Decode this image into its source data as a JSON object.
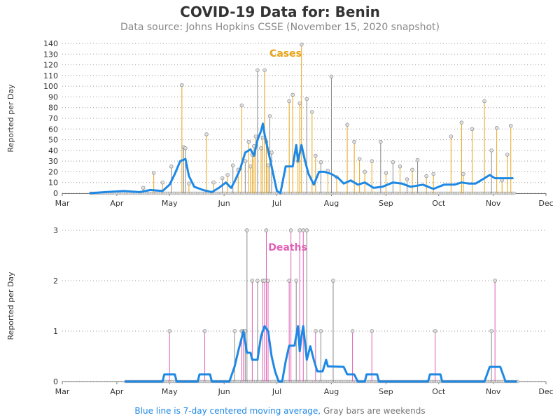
{
  "title": "COVID-19 Data for: Benin",
  "subtitle": "Data source: Johns Hopkins CSSE (November 15, 2020 snapshot)",
  "footer": {
    "blue_part": "Blue line is 7-day centered moving average,",
    "gray_part": "Gray bars are weekends"
  },
  "colors": {
    "cases": "#e8a317",
    "deaths": "#e05fb5",
    "weekend": "#888888",
    "average": "#1e88e5",
    "grid": "#999999"
  },
  "chart_data": [
    {
      "type": "bar",
      "panel": "cases",
      "title": "Cases",
      "ylabel": "Reported per Day",
      "xlim": [
        "2020-03-01",
        "2020-12-01"
      ],
      "ylim": [
        0,
        140
      ],
      "yticks": [
        0,
        10,
        20,
        30,
        40,
        50,
        60,
        70,
        80,
        90,
        100,
        110,
        120,
        130,
        140
      ],
      "xticks": [
        {
          "date": "2020-03-01",
          "label": "Mar"
        },
        {
          "date": "2020-04-01",
          "label": "Apr"
        },
        {
          "date": "2020-05-01",
          "label": "May"
        },
        {
          "date": "2020-06-01",
          "label": "Jun"
        },
        {
          "date": "2020-07-01",
          "label": "Jul"
        },
        {
          "date": "2020-08-01",
          "label": "Aug"
        },
        {
          "date": "2020-09-01",
          "label": "Sep"
        },
        {
          "date": "2020-10-01",
          "label": "Oct"
        },
        {
          "date": "2020-11-01",
          "label": "Nov"
        },
        {
          "date": "2020-12-01",
          "label": "Dec"
        }
      ],
      "points": [
        {
          "date": "2020-04-16",
          "value": 5
        },
        {
          "date": "2020-04-22",
          "value": 19
        },
        {
          "date": "2020-04-27",
          "value": 10
        },
        {
          "date": "2020-05-02",
          "value": 25
        },
        {
          "date": "2020-05-08",
          "value": 101
        },
        {
          "date": "2020-05-09",
          "value": 43
        },
        {
          "date": "2020-05-10",
          "value": 42
        },
        {
          "date": "2020-05-12",
          "value": 9
        },
        {
          "date": "2020-05-22",
          "value": 55
        },
        {
          "date": "2020-05-26",
          "value": 10
        },
        {
          "date": "2020-05-31",
          "value": 14
        },
        {
          "date": "2020-06-03",
          "value": 17
        },
        {
          "date": "2020-06-06",
          "value": 26
        },
        {
          "date": "2020-06-09",
          "value": 22
        },
        {
          "date": "2020-06-11",
          "value": 82
        },
        {
          "date": "2020-06-13",
          "value": 30
        },
        {
          "date": "2020-06-15",
          "value": 48
        },
        {
          "date": "2020-06-16",
          "value": 25
        },
        {
          "date": "2020-06-17",
          "value": 36
        },
        {
          "date": "2020-06-18",
          "value": 44
        },
        {
          "date": "2020-06-19",
          "value": 53
        },
        {
          "date": "2020-06-20",
          "value": 115
        },
        {
          "date": "2020-06-22",
          "value": 42
        },
        {
          "date": "2020-06-23",
          "value": 52
        },
        {
          "date": "2020-06-24",
          "value": 115
        },
        {
          "date": "2020-06-25",
          "value": 48
        },
        {
          "date": "2020-06-26",
          "value": 26
        },
        {
          "date": "2020-06-27",
          "value": 72
        },
        {
          "date": "2020-06-28",
          "value": 38
        },
        {
          "date": "2020-07-08",
          "value": 86
        },
        {
          "date": "2020-07-10",
          "value": 92
        },
        {
          "date": "2020-07-13",
          "value": 30
        },
        {
          "date": "2020-07-14",
          "value": 84
        },
        {
          "date": "2020-07-15",
          "value": 139
        },
        {
          "date": "2020-07-18",
          "value": 88
        },
        {
          "date": "2020-07-21",
          "value": 76
        },
        {
          "date": "2020-07-23",
          "value": 35
        },
        {
          "date": "2020-07-26",
          "value": 29
        },
        {
          "date": "2020-07-30",
          "value": 21
        },
        {
          "date": "2020-08-01",
          "value": 109
        },
        {
          "date": "2020-08-04",
          "value": 15
        },
        {
          "date": "2020-08-10",
          "value": 64
        },
        {
          "date": "2020-08-14",
          "value": 48
        },
        {
          "date": "2020-08-17",
          "value": 32
        },
        {
          "date": "2020-08-20",
          "value": 20
        },
        {
          "date": "2020-08-24",
          "value": 30
        },
        {
          "date": "2020-08-29",
          "value": 48
        },
        {
          "date": "2020-09-01",
          "value": 19
        },
        {
          "date": "2020-09-05",
          "value": 29
        },
        {
          "date": "2020-09-09",
          "value": 25
        },
        {
          "date": "2020-09-13",
          "value": 13
        },
        {
          "date": "2020-09-16",
          "value": 22
        },
        {
          "date": "2020-09-19",
          "value": 31
        },
        {
          "date": "2020-09-24",
          "value": 16
        },
        {
          "date": "2020-09-28",
          "value": 18
        },
        {
          "date": "2020-10-08",
          "value": 53
        },
        {
          "date": "2020-10-14",
          "value": 66
        },
        {
          "date": "2020-10-15",
          "value": 18
        },
        {
          "date": "2020-10-20",
          "value": 60
        },
        {
          "date": "2020-10-27",
          "value": 86
        },
        {
          "date": "2020-10-31",
          "value": 40
        },
        {
          "date": "2020-11-03",
          "value": 61
        },
        {
          "date": "2020-11-06",
          "value": 12
        },
        {
          "date": "2020-11-09",
          "value": 36
        },
        {
          "date": "2020-11-11",
          "value": 63
        }
      ],
      "moving_average": [
        [
          "2020-03-17",
          0
        ],
        [
          "2020-03-25",
          1
        ],
        [
          "2020-04-05",
          2
        ],
        [
          "2020-04-14",
          1
        ],
        [
          "2020-04-20",
          3
        ],
        [
          "2020-04-27",
          2
        ],
        [
          "2020-05-01",
          8
        ],
        [
          "2020-05-04",
          18
        ],
        [
          "2020-05-07",
          30
        ],
        [
          "2020-05-10",
          32
        ],
        [
          "2020-05-12",
          16
        ],
        [
          "2020-05-15",
          6
        ],
        [
          "2020-05-20",
          3
        ],
        [
          "2020-05-25",
          1
        ],
        [
          "2020-05-29",
          5
        ],
        [
          "2020-06-02",
          10
        ],
        [
          "2020-06-05",
          5
        ],
        [
          "2020-06-07",
          11
        ],
        [
          "2020-06-10",
          22
        ],
        [
          "2020-06-13",
          38
        ],
        [
          "2020-06-16",
          41
        ],
        [
          "2020-06-18",
          35
        ],
        [
          "2020-06-20",
          50
        ],
        [
          "2020-06-22",
          58
        ],
        [
          "2020-06-23",
          65
        ],
        [
          "2020-06-24",
          55
        ],
        [
          "2020-06-26",
          40
        ],
        [
          "2020-06-28",
          25
        ],
        [
          "2020-07-01",
          2
        ],
        [
          "2020-07-03",
          0
        ],
        [
          "2020-07-06",
          25
        ],
        [
          "2020-07-10",
          25
        ],
        [
          "2020-07-12",
          45
        ],
        [
          "2020-07-13",
          30
        ],
        [
          "2020-07-15",
          45
        ],
        [
          "2020-07-17",
          30
        ],
        [
          "2020-07-19",
          18
        ],
        [
          "2020-07-22",
          8
        ],
        [
          "2020-07-25",
          20
        ],
        [
          "2020-07-28",
          20
        ],
        [
          "2020-08-01",
          18
        ],
        [
          "2020-08-05",
          14
        ],
        [
          "2020-08-08",
          9
        ],
        [
          "2020-08-12",
          12
        ],
        [
          "2020-08-16",
          8
        ],
        [
          "2020-08-20",
          10
        ],
        [
          "2020-08-25",
          5
        ],
        [
          "2020-08-30",
          6
        ],
        [
          "2020-09-05",
          10
        ],
        [
          "2020-09-10",
          9
        ],
        [
          "2020-09-15",
          6
        ],
        [
          "2020-09-22",
          8
        ],
        [
          "2020-09-28",
          4
        ],
        [
          "2020-10-04",
          8
        ],
        [
          "2020-10-10",
          8
        ],
        [
          "2020-10-14",
          10
        ],
        [
          "2020-10-18",
          9
        ],
        [
          "2020-10-22",
          9
        ],
        [
          "2020-10-25",
          12
        ],
        [
          "2020-10-30",
          17
        ],
        [
          "2020-11-02",
          14
        ],
        [
          "2020-11-06",
          14
        ],
        [
          "2020-11-12",
          14
        ]
      ]
    },
    {
      "type": "bar",
      "panel": "deaths",
      "title": "Deaths",
      "ylabel": "Reported per Day",
      "xlim": [
        "2020-03-01",
        "2020-12-01"
      ],
      "ylim": [
        0,
        3
      ],
      "yticks": [
        0,
        1,
        2,
        3
      ],
      "xticks": [
        {
          "date": "2020-03-01",
          "label": "Mar"
        },
        {
          "date": "2020-04-01",
          "label": "Apr"
        },
        {
          "date": "2020-05-01",
          "label": "May"
        },
        {
          "date": "2020-06-01",
          "label": "Jun"
        },
        {
          "date": "2020-07-01",
          "label": "Jul"
        },
        {
          "date": "2020-08-01",
          "label": "Aug"
        },
        {
          "date": "2020-09-01",
          "label": "Sep"
        },
        {
          "date": "2020-10-01",
          "label": "Oct"
        },
        {
          "date": "2020-11-01",
          "label": "Nov"
        },
        {
          "date": "2020-12-01",
          "label": "Dec"
        }
      ],
      "points": [
        {
          "date": "2020-05-01",
          "value": 1
        },
        {
          "date": "2020-05-21",
          "value": 1
        },
        {
          "date": "2020-06-07",
          "value": 1
        },
        {
          "date": "2020-06-11",
          "value": 1
        },
        {
          "date": "2020-06-12",
          "value": 1
        },
        {
          "date": "2020-06-13",
          "value": 1
        },
        {
          "date": "2020-06-14",
          "value": 3
        },
        {
          "date": "2020-06-17",
          "value": 2
        },
        {
          "date": "2020-06-20",
          "value": 2
        },
        {
          "date": "2020-06-23",
          "value": 2
        },
        {
          "date": "2020-06-24",
          "value": 2
        },
        {
          "date": "2020-06-25",
          "value": 3
        },
        {
          "date": "2020-06-26",
          "value": 2
        },
        {
          "date": "2020-07-08",
          "value": 2
        },
        {
          "date": "2020-07-09",
          "value": 3
        },
        {
          "date": "2020-07-12",
          "value": 2
        },
        {
          "date": "2020-07-14",
          "value": 3
        },
        {
          "date": "2020-07-16",
          "value": 3
        },
        {
          "date": "2020-07-18",
          "value": 3
        },
        {
          "date": "2020-07-23",
          "value": 1
        },
        {
          "date": "2020-07-26",
          "value": 1
        },
        {
          "date": "2020-08-02",
          "value": 2
        },
        {
          "date": "2020-08-13",
          "value": 1
        },
        {
          "date": "2020-08-24",
          "value": 1
        },
        {
          "date": "2020-09-29",
          "value": 1
        },
        {
          "date": "2020-10-31",
          "value": 1
        },
        {
          "date": "2020-11-02",
          "value": 2
        }
      ],
      "moving_average": [
        [
          "2020-04-06",
          0
        ],
        [
          "2020-04-27",
          0
        ],
        [
          "2020-04-28",
          0.14
        ],
        [
          "2020-05-04",
          0.14
        ],
        [
          "2020-05-05",
          0
        ],
        [
          "2020-05-17",
          0
        ],
        [
          "2020-05-18",
          0.14
        ],
        [
          "2020-05-24",
          0.14
        ],
        [
          "2020-05-25",
          0
        ],
        [
          "2020-06-04",
          0
        ],
        [
          "2020-06-07",
          0.3
        ],
        [
          "2020-06-09",
          0.6
        ],
        [
          "2020-06-12",
          1.0
        ],
        [
          "2020-06-14",
          0.57
        ],
        [
          "2020-06-16",
          0.57
        ],
        [
          "2020-06-17",
          0.43
        ],
        [
          "2020-06-20",
          0.43
        ],
        [
          "2020-06-22",
          0.9
        ],
        [
          "2020-06-24",
          1.1
        ],
        [
          "2020-06-26",
          1.0
        ],
        [
          "2020-06-28",
          0.5
        ],
        [
          "2020-06-30",
          0.2
        ],
        [
          "2020-07-02",
          0
        ],
        [
          "2020-07-04",
          0
        ],
        [
          "2020-07-06",
          0.4
        ],
        [
          "2020-07-08",
          0.71
        ],
        [
          "2020-07-11",
          0.71
        ],
        [
          "2020-07-13",
          1.1
        ],
        [
          "2020-07-14",
          0.6
        ],
        [
          "2020-07-15",
          0.9
        ],
        [
          "2020-07-16",
          1.1
        ],
        [
          "2020-07-18",
          0.43
        ],
        [
          "2020-07-20",
          0.7
        ],
        [
          "2020-07-22",
          0.43
        ],
        [
          "2020-07-24",
          0.2
        ],
        [
          "2020-07-27",
          0.2
        ],
        [
          "2020-07-29",
          0.43
        ],
        [
          "2020-07-30",
          0.3
        ],
        [
          "2020-08-08",
          0.29
        ],
        [
          "2020-08-10",
          0.14
        ],
        [
          "2020-08-14",
          0.14
        ],
        [
          "2020-08-16",
          0
        ],
        [
          "2020-08-20",
          0
        ],
        [
          "2020-08-21",
          0.14
        ],
        [
          "2020-08-27",
          0.14
        ],
        [
          "2020-08-28",
          0
        ],
        [
          "2020-09-25",
          0
        ],
        [
          "2020-09-26",
          0.14
        ],
        [
          "2020-10-02",
          0.14
        ],
        [
          "2020-10-03",
          0
        ],
        [
          "2020-10-27",
          0
        ],
        [
          "2020-10-30",
          0.29
        ],
        [
          "2020-11-05",
          0.29
        ],
        [
          "2020-11-08",
          0
        ],
        [
          "2020-11-14",
          0
        ]
      ]
    }
  ]
}
